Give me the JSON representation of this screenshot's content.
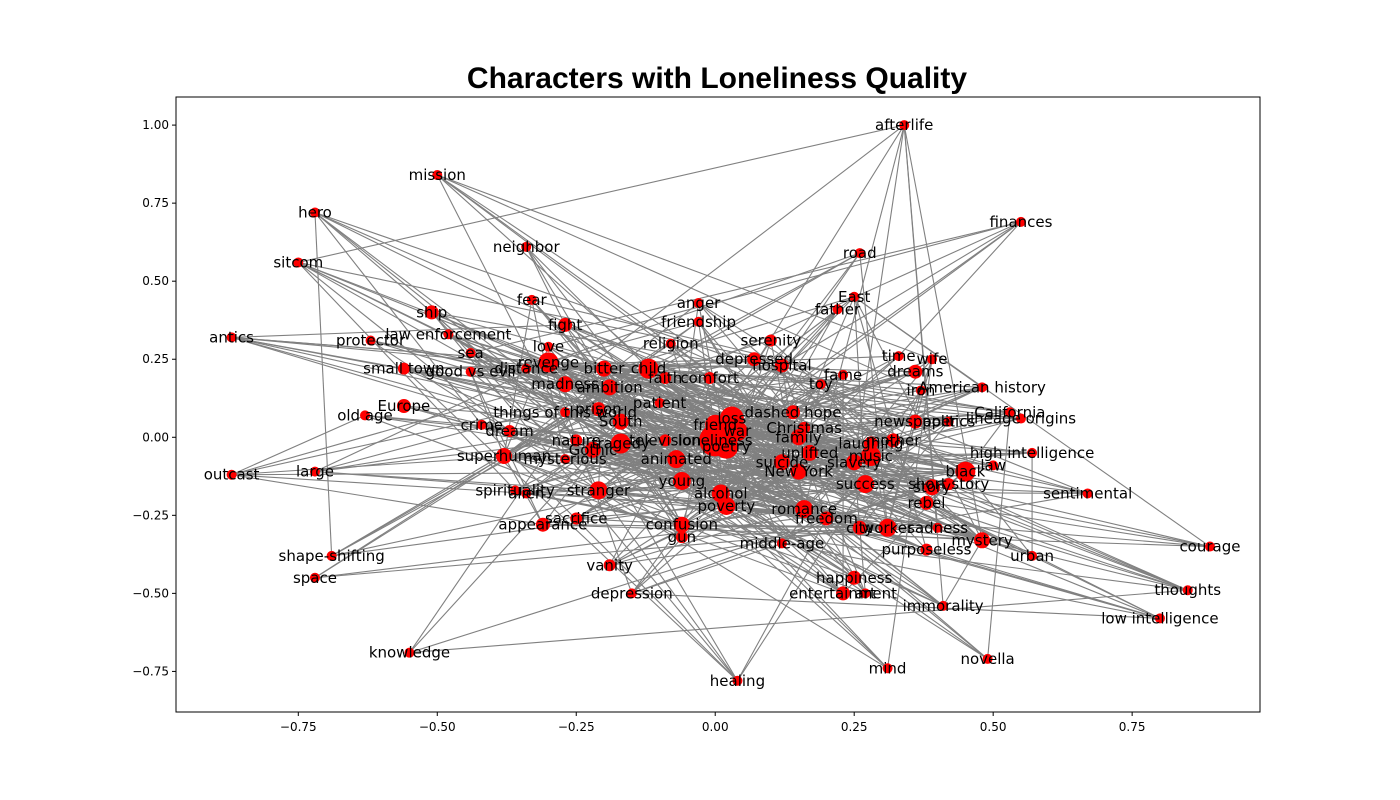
{
  "chart_data": {
    "type": "network",
    "title": "Characters with Loneliness Quality",
    "xlim": [
      -0.97,
      0.98
    ],
    "ylim": [
      -0.88,
      1.09
    ],
    "x_ticks": [
      -0.75,
      -0.5,
      -0.25,
      0.0,
      0.25,
      0.5,
      0.75
    ],
    "x_tick_labels": [
      "−0.75",
      "−0.50",
      "−0.25",
      "0.00",
      "0.25",
      "0.50",
      "0.75"
    ],
    "y_ticks": [
      -0.75,
      -0.5,
      -0.25,
      0.0,
      0.25,
      0.5,
      0.75,
      1.0
    ],
    "y_tick_labels": [
      "−0.75",
      "−0.50",
      "−0.25",
      "0.00",
      "0.25",
      "0.50",
      "0.75",
      "1.00"
    ],
    "node_color": "#ff0000",
    "edge_color": "#808080",
    "nodes": [
      {
        "label": "afterlife",
        "x": 0.34,
        "y": 1.0,
        "size": 5
      },
      {
        "label": "mission",
        "x": -0.5,
        "y": 0.84,
        "size": 5
      },
      {
        "label": "hero",
        "x": -0.72,
        "y": 0.72,
        "size": 5
      },
      {
        "label": "finances",
        "x": 0.55,
        "y": 0.69,
        "size": 5
      },
      {
        "label": "neighbor",
        "x": -0.34,
        "y": 0.61,
        "size": 5
      },
      {
        "label": "road",
        "x": 0.26,
        "y": 0.59,
        "size": 5
      },
      {
        "label": "sitcom",
        "x": -0.75,
        "y": 0.56,
        "size": 5
      },
      {
        "label": "fear",
        "x": -0.33,
        "y": 0.44,
        "size": 5
      },
      {
        "label": "anger",
        "x": -0.03,
        "y": 0.43,
        "size": 5
      },
      {
        "label": "East",
        "x": 0.25,
        "y": 0.45,
        "size": 5
      },
      {
        "label": "father",
        "x": 0.22,
        "y": 0.41,
        "size": 5
      },
      {
        "label": "ship",
        "x": -0.51,
        "y": 0.4,
        "size": 7
      },
      {
        "label": "friendship",
        "x": -0.03,
        "y": 0.37,
        "size": 5
      },
      {
        "label": "fight",
        "x": -0.27,
        "y": 0.36,
        "size": 7
      },
      {
        "label": "law enforcement",
        "x": -0.48,
        "y": 0.33,
        "size": 5
      },
      {
        "label": "antics",
        "x": -0.87,
        "y": 0.32,
        "size": 5
      },
      {
        "label": "protector",
        "x": -0.62,
        "y": 0.31,
        "size": 5
      },
      {
        "label": "serenity",
        "x": 0.1,
        "y": 0.31,
        "size": 6
      },
      {
        "label": "religion",
        "x": -0.08,
        "y": 0.3,
        "size": 5
      },
      {
        "label": "love",
        "x": -0.3,
        "y": 0.29,
        "size": 5
      },
      {
        "label": "sea",
        "x": -0.44,
        "y": 0.27,
        "size": 5
      },
      {
        "label": "time",
        "x": 0.33,
        "y": 0.26,
        "size": 5
      },
      {
        "label": "wife",
        "x": 0.39,
        "y": 0.25,
        "size": 5
      },
      {
        "label": "depressed",
        "x": 0.07,
        "y": 0.25,
        "size": 7
      },
      {
        "label": "revenge",
        "x": -0.3,
        "y": 0.24,
        "size": 10
      },
      {
        "label": "small town",
        "x": -0.56,
        "y": 0.22,
        "size": 6
      },
      {
        "label": "hospital",
        "x": 0.12,
        "y": 0.23,
        "size": 7
      },
      {
        "label": "distance",
        "x": -0.34,
        "y": 0.22,
        "size": 5
      },
      {
        "label": "bitter",
        "x": -0.2,
        "y": 0.22,
        "size": 8
      },
      {
        "label": "child",
        "x": -0.12,
        "y": 0.22,
        "size": 10
      },
      {
        "label": "dreams",
        "x": 0.36,
        "y": 0.21,
        "size": 7
      },
      {
        "label": "good vs evil",
        "x": -0.44,
        "y": 0.21,
        "size": 5
      },
      {
        "label": "faith",
        "x": -0.09,
        "y": 0.19,
        "size": 6
      },
      {
        "label": "comfort",
        "x": -0.01,
        "y": 0.19,
        "size": 6
      },
      {
        "label": "fame",
        "x": 0.23,
        "y": 0.2,
        "size": 5
      },
      {
        "label": "madness",
        "x": -0.27,
        "y": 0.17,
        "size": 8
      },
      {
        "label": "ambition",
        "x": -0.19,
        "y": 0.16,
        "size": 8
      },
      {
        "label": "toy",
        "x": 0.19,
        "y": 0.17,
        "size": 5
      },
      {
        "label": "American history",
        "x": 0.48,
        "y": 0.16,
        "size": 5
      },
      {
        "label": "iron",
        "x": 0.37,
        "y": 0.15,
        "size": 5
      },
      {
        "label": "patient",
        "x": -0.1,
        "y": 0.11,
        "size": 5
      },
      {
        "label": "prison",
        "x": -0.21,
        "y": 0.09,
        "size": 7
      },
      {
        "label": "Europe",
        "x": -0.56,
        "y": 0.1,
        "size": 7
      },
      {
        "label": "things of this world",
        "x": -0.27,
        "y": 0.08,
        "size": 5
      },
      {
        "label": "dashed hope",
        "x": 0.14,
        "y": 0.08,
        "size": 7
      },
      {
        "label": "old age",
        "x": -0.63,
        "y": 0.07,
        "size": 5
      },
      {
        "label": "California",
        "x": 0.53,
        "y": 0.08,
        "size": 5
      },
      {
        "label": "loss",
        "x": 0.03,
        "y": 0.06,
        "size": 12
      },
      {
        "label": "newspaper",
        "x": 0.36,
        "y": 0.05,
        "size": 7
      },
      {
        "label": "South",
        "x": -0.17,
        "y": 0.05,
        "size": 8
      },
      {
        "label": "lineage origins",
        "x": 0.55,
        "y": 0.06,
        "size": 5
      },
      {
        "label": "politics",
        "x": 0.42,
        "y": 0.05,
        "size": 5
      },
      {
        "label": "friend",
        "x": 0.0,
        "y": 0.04,
        "size": 10
      },
      {
        "label": "crime",
        "x": -0.42,
        "y": 0.04,
        "size": 5
      },
      {
        "label": "Christmas",
        "x": 0.16,
        "y": 0.03,
        "size": 6
      },
      {
        "label": "war",
        "x": 0.04,
        "y": 0.02,
        "size": 10
      },
      {
        "label": "dream",
        "x": -0.37,
        "y": 0.02,
        "size": 6
      },
      {
        "label": "family",
        "x": 0.15,
        "y": 0.0,
        "size": 8
      },
      {
        "label": "loneliness",
        "x": 0.0,
        "y": -0.01,
        "size": 16
      },
      {
        "label": "nature",
        "x": -0.25,
        "y": -0.01,
        "size": 6
      },
      {
        "label": "television",
        "x": -0.09,
        "y": -0.01,
        "size": 6
      },
      {
        "label": "tragedy",
        "x": -0.17,
        "y": -0.02,
        "size": 10
      },
      {
        "label": "mother",
        "x": 0.32,
        "y": -0.01,
        "size": 7
      },
      {
        "label": "laughing",
        "x": 0.28,
        "y": -0.02,
        "size": 7
      },
      {
        "label": "poetry",
        "x": 0.02,
        "y": -0.03,
        "size": 12
      },
      {
        "label": "Gothic",
        "x": -0.22,
        "y": -0.04,
        "size": 8
      },
      {
        "label": "uplifted",
        "x": 0.17,
        "y": -0.05,
        "size": 8
      },
      {
        "label": "music",
        "x": 0.28,
        "y": -0.06,
        "size": 10
      },
      {
        "label": "high intelligence",
        "x": 0.57,
        "y": -0.05,
        "size": 5
      },
      {
        "label": "superhuman",
        "x": -0.38,
        "y": -0.06,
        "size": 8
      },
      {
        "label": "mysterious",
        "x": -0.27,
        "y": -0.07,
        "size": 5
      },
      {
        "label": "animated",
        "x": -0.07,
        "y": -0.07,
        "size": 9
      },
      {
        "label": "suicide",
        "x": 0.12,
        "y": -0.08,
        "size": 8
      },
      {
        "label": "slavery",
        "x": 0.25,
        "y": -0.08,
        "size": 8
      },
      {
        "label": "law",
        "x": 0.5,
        "y": -0.09,
        "size": 5
      },
      {
        "label": "large",
        "x": -0.72,
        "y": -0.11,
        "size": 5
      },
      {
        "label": "black",
        "x": 0.45,
        "y": -0.11,
        "size": 10
      },
      {
        "label": "New York",
        "x": 0.15,
        "y": -0.11,
        "size": 8
      },
      {
        "label": "outcast",
        "x": -0.87,
        "y": -0.12,
        "size": 5
      },
      {
        "label": "young",
        "x": -0.06,
        "y": -0.14,
        "size": 9
      },
      {
        "label": "success",
        "x": 0.27,
        "y": -0.15,
        "size": 9
      },
      {
        "label": "short story",
        "x": 0.42,
        "y": -0.15,
        "size": 6
      },
      {
        "label": "story",
        "x": 0.39,
        "y": -0.16,
        "size": 8
      },
      {
        "label": "stranger",
        "x": -0.21,
        "y": -0.17,
        "size": 9
      },
      {
        "label": "spirituality",
        "x": -0.36,
        "y": -0.17,
        "size": 5
      },
      {
        "label": "alcohol",
        "x": 0.01,
        "y": -0.18,
        "size": 9
      },
      {
        "label": "alien",
        "x": -0.34,
        "y": -0.18,
        "size": 5
      },
      {
        "label": "sentimental",
        "x": 0.67,
        "y": -0.18,
        "size": 5
      },
      {
        "label": "rebel",
        "x": 0.38,
        "y": -0.21,
        "size": 7
      },
      {
        "label": "poverty",
        "x": 0.02,
        "y": -0.22,
        "size": 9
      },
      {
        "label": "romance",
        "x": 0.16,
        "y": -0.23,
        "size": 9
      },
      {
        "label": "sacrifice",
        "x": -0.25,
        "y": -0.26,
        "size": 6
      },
      {
        "label": "freedom",
        "x": 0.2,
        "y": -0.26,
        "size": 7
      },
      {
        "label": "appearance",
        "x": -0.31,
        "y": -0.28,
        "size": 7
      },
      {
        "label": "confusion",
        "x": -0.06,
        "y": -0.28,
        "size": 8
      },
      {
        "label": "city",
        "x": 0.26,
        "y": -0.29,
        "size": 7
      },
      {
        "label": "worker",
        "x": 0.31,
        "y": -0.29,
        "size": 9
      },
      {
        "label": "sadness",
        "x": 0.4,
        "y": -0.29,
        "size": 5
      },
      {
        "label": "gun",
        "x": -0.06,
        "y": -0.32,
        "size": 6
      },
      {
        "label": "mystery",
        "x": 0.48,
        "y": -0.33,
        "size": 8
      },
      {
        "label": "middle-age",
        "x": 0.12,
        "y": -0.34,
        "size": 5
      },
      {
        "label": "purposeless",
        "x": 0.38,
        "y": -0.36,
        "size": 6
      },
      {
        "label": "shape-shifting",
        "x": -0.69,
        "y": -0.38,
        "size": 5
      },
      {
        "label": "urban",
        "x": 0.57,
        "y": -0.38,
        "size": 5
      },
      {
        "label": "courage",
        "x": 0.89,
        "y": -0.35,
        "size": 5
      },
      {
        "label": "vanity",
        "x": -0.19,
        "y": -0.41,
        "size": 6
      },
      {
        "label": "happiness",
        "x": 0.25,
        "y": -0.45,
        "size": 7
      },
      {
        "label": "space",
        "x": -0.72,
        "y": -0.45,
        "size": 5
      },
      {
        "label": "thoughts",
        "x": 0.85,
        "y": -0.49,
        "size": 5
      },
      {
        "label": "entertainment",
        "x": 0.23,
        "y": -0.5,
        "size": 7
      },
      {
        "label": "art",
        "x": 0.27,
        "y": -0.5,
        "size": 5
      },
      {
        "label": "depression",
        "x": -0.15,
        "y": -0.5,
        "size": 5
      },
      {
        "label": "immorality",
        "x": 0.41,
        "y": -0.54,
        "size": 5
      },
      {
        "label": "low intelligence",
        "x": 0.8,
        "y": -0.58,
        "size": 5
      },
      {
        "label": "knowledge",
        "x": -0.55,
        "y": -0.69,
        "size": 5
      },
      {
        "label": "novella",
        "x": 0.49,
        "y": -0.71,
        "size": 5
      },
      {
        "label": "mind",
        "x": 0.31,
        "y": -0.74,
        "size": 5
      },
      {
        "label": "healing",
        "x": 0.04,
        "y": -0.78,
        "size": 5
      }
    ]
  }
}
